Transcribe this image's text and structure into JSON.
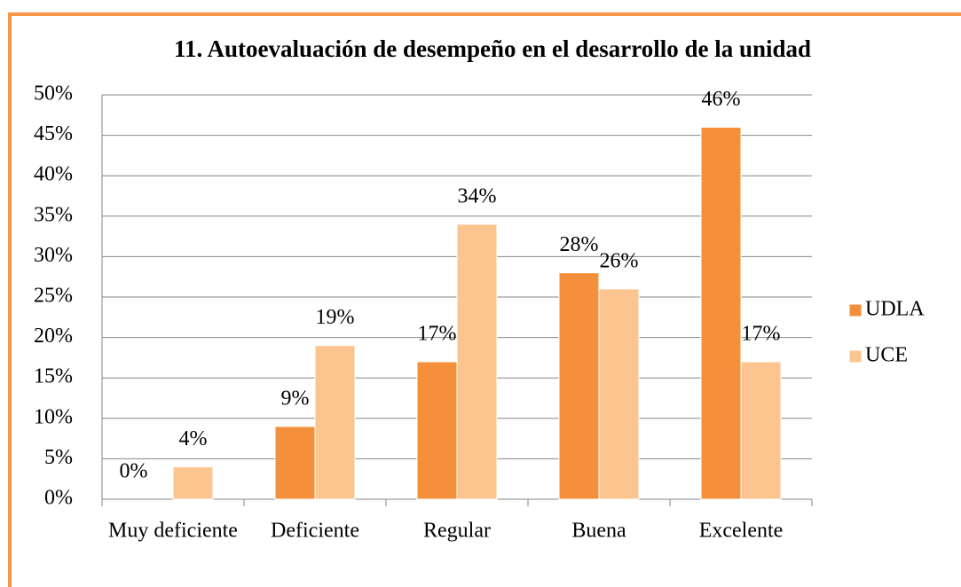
{
  "chart_data": {
    "type": "bar",
    "title": "11. Autoevaluación de desempeño en el desarrollo de la unidad",
    "categories": [
      "Muy deficiente",
      "Deficiente",
      "Regular",
      "Buena",
      "Excelente"
    ],
    "series": [
      {
        "name": "UDLA",
        "color": "#f4903c",
        "values": [
          0,
          9,
          17,
          28,
          46
        ],
        "value_labels": [
          "0%",
          "9%",
          "17%",
          "28%",
          "46%"
        ]
      },
      {
        "name": "UCE",
        "color": "#fcc590",
        "values": [
          4,
          19,
          34,
          26,
          17
        ],
        "value_labels": [
          "4%",
          "19%",
          "34%",
          "26%",
          "17%"
        ]
      }
    ],
    "ylim": [
      0,
      50
    ],
    "yticks": [
      {
        "value": 0,
        "label": "0%"
      },
      {
        "value": 5,
        "label": "5%"
      },
      {
        "value": 10,
        "label": "10%"
      },
      {
        "value": 15,
        "label": "15%"
      },
      {
        "value": 20,
        "label": "20%"
      },
      {
        "value": 25,
        "label": "25%"
      },
      {
        "value": 30,
        "label": "30%"
      },
      {
        "value": 35,
        "label": "35%"
      },
      {
        "value": 40,
        "label": "40%"
      },
      {
        "value": 45,
        "label": "45%"
      },
      {
        "value": 50,
        "label": "50%"
      }
    ],
    "grid": true,
    "legend": "right"
  }
}
